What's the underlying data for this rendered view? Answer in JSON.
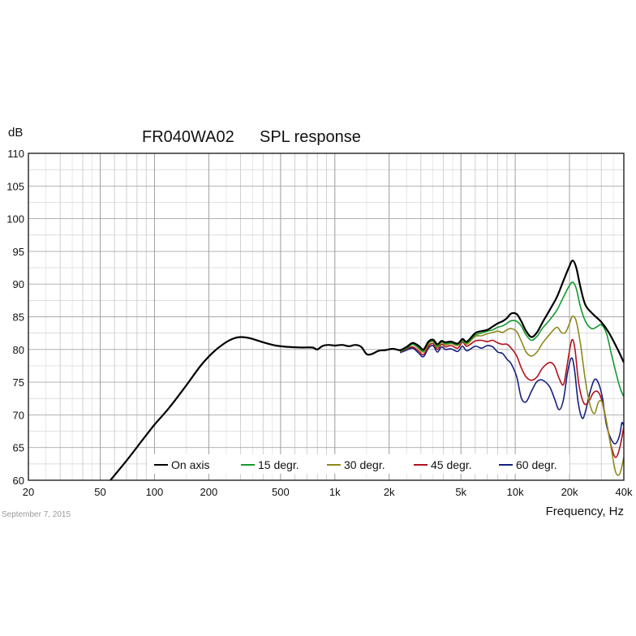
{
  "chart_data": {
    "type": "line",
    "title": "FR040WA02",
    "subtitle": "SPL response",
    "ylabel": "dB",
    "xlabel": "Frequency, Hz",
    "date_stamp": "September 7, 2015",
    "xscale": "log",
    "xlim": [
      20,
      40000
    ],
    "ylim": [
      60,
      110
    ],
    "grid": true,
    "legend_position": "bottom",
    "x_ticks": [
      {
        "value": 20,
        "label": "20"
      },
      {
        "value": 50,
        "label": "50"
      },
      {
        "value": 100,
        "label": "100"
      },
      {
        "value": 200,
        "label": "200"
      },
      {
        "value": 500,
        "label": "500"
      },
      {
        "value": 1000,
        "label": "1k"
      },
      {
        "value": 2000,
        "label": "2k"
      },
      {
        "value": 5000,
        "label": "5k"
      },
      {
        "value": 10000,
        "label": "10k"
      },
      {
        "value": 20000,
        "label": "20k"
      },
      {
        "value": 40000,
        "label": "40k"
      }
    ],
    "y_ticks": [
      {
        "value": 60,
        "label": "60"
      },
      {
        "value": 65,
        "label": "65"
      },
      {
        "value": 70,
        "label": "70"
      },
      {
        "value": 75,
        "label": "75"
      },
      {
        "value": 80,
        "label": "80"
      },
      {
        "value": 85,
        "label": "85"
      },
      {
        "value": 90,
        "label": "90"
      },
      {
        "value": 95,
        "label": "95"
      },
      {
        "value": 100,
        "label": "100"
      },
      {
        "value": 105,
        "label": "105"
      },
      {
        "value": 110,
        "label": "110"
      }
    ],
    "series": [
      {
        "name": "On axis",
        "color": "#000000",
        "points": [
          [
            57,
            60
          ],
          [
            70,
            63
          ],
          [
            85,
            66
          ],
          [
            100,
            68.5
          ],
          [
            120,
            71
          ],
          [
            150,
            74.5
          ],
          [
            180,
            77.5
          ],
          [
            210,
            79.5
          ],
          [
            240,
            80.8
          ],
          [
            270,
            81.6
          ],
          [
            300,
            81.9
          ],
          [
            340,
            81.7
          ],
          [
            400,
            81.1
          ],
          [
            470,
            80.6
          ],
          [
            550,
            80.4
          ],
          [
            650,
            80.3
          ],
          [
            750,
            80.3
          ],
          [
            800,
            80.0
          ],
          [
            850,
            80.5
          ],
          [
            920,
            80.7
          ],
          [
            1000,
            80.6
          ],
          [
            1100,
            80.7
          ],
          [
            1200,
            80.5
          ],
          [
            1300,
            80.7
          ],
          [
            1400,
            80.4
          ],
          [
            1500,
            79.3
          ],
          [
            1600,
            79.3
          ],
          [
            1750,
            79.8
          ],
          [
            1900,
            79.9
          ],
          [
            2100,
            80.1
          ],
          [
            2300,
            79.9
          ],
          [
            2500,
            80.4
          ],
          [
            2700,
            81.0
          ],
          [
            2900,
            80.6
          ],
          [
            3100,
            80.0
          ],
          [
            3300,
            81.2
          ],
          [
            3500,
            81.5
          ],
          [
            3700,
            80.8
          ],
          [
            3900,
            81.3
          ],
          [
            4100,
            81.1
          ],
          [
            4400,
            81.2
          ],
          [
            4800,
            80.9
          ],
          [
            5100,
            81.6
          ],
          [
            5400,
            81.2
          ],
          [
            6000,
            82.5
          ],
          [
            6500,
            82.8
          ],
          [
            7000,
            83.0
          ],
          [
            7500,
            83.5
          ],
          [
            8000,
            84.0
          ],
          [
            8500,
            84.3
          ],
          [
            9000,
            84.8
          ],
          [
            9500,
            85.5
          ],
          [
            10200,
            85.4
          ],
          [
            10800,
            84.3
          ],
          [
            11500,
            82.8
          ],
          [
            12300,
            81.9
          ],
          [
            13200,
            82.6
          ],
          [
            14200,
            84.2
          ],
          [
            15500,
            86.0
          ],
          [
            17000,
            88.0
          ],
          [
            18500,
            90.5
          ],
          [
            19800,
            92.5
          ],
          [
            20800,
            93.6
          ],
          [
            21800,
            92.5
          ],
          [
            23000,
            89.5
          ],
          [
            24500,
            86.8
          ],
          [
            27000,
            85.4
          ],
          [
            30000,
            84.2
          ],
          [
            33000,
            82.6
          ],
          [
            37000,
            80.0
          ],
          [
            40000,
            78.0
          ]
        ]
      },
      {
        "name": "15 degr.",
        "color": "#139a2c",
        "points": [
          [
            2300,
            79.7
          ],
          [
            2500,
            80.2
          ],
          [
            2700,
            80.8
          ],
          [
            2900,
            80.3
          ],
          [
            3100,
            79.8
          ],
          [
            3300,
            81.0
          ],
          [
            3500,
            81.3
          ],
          [
            3700,
            80.5
          ],
          [
            3900,
            81.2
          ],
          [
            4100,
            80.9
          ],
          [
            4400,
            81.0
          ],
          [
            4800,
            80.8
          ],
          [
            5100,
            81.4
          ],
          [
            5400,
            81.0
          ],
          [
            6000,
            82.2
          ],
          [
            6500,
            82.5
          ],
          [
            7000,
            82.8
          ],
          [
            7500,
            83.0
          ],
          [
            8000,
            83.4
          ],
          [
            8500,
            83.6
          ],
          [
            9000,
            84.0
          ],
          [
            9500,
            84.4
          ],
          [
            10200,
            84.3
          ],
          [
            10800,
            83.6
          ],
          [
            11500,
            82.2
          ],
          [
            12300,
            81.4
          ],
          [
            13200,
            82.0
          ],
          [
            14200,
            83.3
          ],
          [
            15500,
            84.5
          ],
          [
            17000,
            86.0
          ],
          [
            18500,
            88.0
          ],
          [
            19800,
            89.6
          ],
          [
            20800,
            90.3
          ],
          [
            21800,
            89.3
          ],
          [
            23000,
            86.5
          ],
          [
            24500,
            84.3
          ],
          [
            26500,
            83.2
          ],
          [
            28500,
            83.5
          ],
          [
            30000,
            83.8
          ],
          [
            32000,
            82.5
          ],
          [
            34000,
            79.5
          ],
          [
            36500,
            76.0
          ],
          [
            38500,
            73.8
          ],
          [
            40000,
            72.8
          ]
        ]
      },
      {
        "name": "30 degr.",
        "color": "#8e8a1c",
        "points": [
          [
            2300,
            79.8
          ],
          [
            2500,
            80.3
          ],
          [
            2700,
            80.8
          ],
          [
            2900,
            80.2
          ],
          [
            3100,
            79.6
          ],
          [
            3300,
            80.8
          ],
          [
            3500,
            81.2
          ],
          [
            3700,
            80.3
          ],
          [
            3900,
            81.1
          ],
          [
            4100,
            80.7
          ],
          [
            4400,
            80.9
          ],
          [
            4800,
            80.6
          ],
          [
            5100,
            81.3
          ],
          [
            5400,
            80.8
          ],
          [
            6000,
            82.0
          ],
          [
            6500,
            82.1
          ],
          [
            7000,
            82.4
          ],
          [
            7500,
            82.6
          ],
          [
            8000,
            82.8
          ],
          [
            8500,
            82.6
          ],
          [
            9000,
            83.0
          ],
          [
            9500,
            83.2
          ],
          [
            10200,
            82.7
          ],
          [
            10800,
            81.3
          ],
          [
            11500,
            79.6
          ],
          [
            12300,
            79.0
          ],
          [
            13200,
            79.6
          ],
          [
            14200,
            81.0
          ],
          [
            15500,
            82.3
          ],
          [
            17000,
            83.4
          ],
          [
            18000,
            82.6
          ],
          [
            19000,
            82.6
          ],
          [
            20000,
            84.0
          ],
          [
            20800,
            85.1
          ],
          [
            21800,
            84.3
          ],
          [
            23000,
            80.8
          ],
          [
            24500,
            75.2
          ],
          [
            26000,
            71.5
          ],
          [
            27500,
            70.2
          ],
          [
            29000,
            72.0
          ],
          [
            30500,
            71.8
          ],
          [
            32000,
            69.0
          ],
          [
            34000,
            65.0
          ],
          [
            36000,
            61.3
          ],
          [
            38000,
            61.0
          ],
          [
            40000,
            63.5
          ]
        ]
      },
      {
        "name": "45 degr.",
        "color": "#b3111b",
        "points": [
          [
            2300,
            79.6
          ],
          [
            2500,
            80.1
          ],
          [
            2700,
            80.4
          ],
          [
            2900,
            79.8
          ],
          [
            3100,
            79.2
          ],
          [
            3300,
            80.5
          ],
          [
            3500,
            80.9
          ],
          [
            3700,
            80.0
          ],
          [
            3900,
            80.8
          ],
          [
            4100,
            80.4
          ],
          [
            4400,
            80.6
          ],
          [
            4800,
            80.2
          ],
          [
            5100,
            81.1
          ],
          [
            5400,
            80.5
          ],
          [
            6000,
            81.3
          ],
          [
            6500,
            81.4
          ],
          [
            7000,
            81.2
          ],
          [
            7500,
            81.4
          ],
          [
            8000,
            81.0
          ],
          [
            8500,
            80.8
          ],
          [
            9000,
            80.8
          ],
          [
            9500,
            80.2
          ],
          [
            10200,
            79.0
          ],
          [
            10800,
            77.2
          ],
          [
            11500,
            75.8
          ],
          [
            12300,
            75.3
          ],
          [
            13200,
            75.8
          ],
          [
            14200,
            77.2
          ],
          [
            15500,
            78.0
          ],
          [
            16500,
            77.5
          ],
          [
            17500,
            75.6
          ],
          [
            18500,
            74.6
          ],
          [
            19300,
            77.2
          ],
          [
            20200,
            80.5
          ],
          [
            20800,
            81.5
          ],
          [
            21500,
            79.8
          ],
          [
            22500,
            74.8
          ],
          [
            24000,
            71.8
          ],
          [
            25500,
            72.0
          ],
          [
            27000,
            73.3
          ],
          [
            28500,
            73.6
          ],
          [
            30000,
            72.5
          ],
          [
            32000,
            69.0
          ],
          [
            34000,
            65.3
          ],
          [
            36000,
            63.5
          ],
          [
            38000,
            65.0
          ],
          [
            40000,
            68.2
          ]
        ]
      },
      {
        "name": "60 degr.",
        "color": "#14207f",
        "points": [
          [
            2300,
            79.5
          ],
          [
            2500,
            79.9
          ],
          [
            2700,
            80.2
          ],
          [
            2900,
            79.5
          ],
          [
            3100,
            78.9
          ],
          [
            3300,
            80.2
          ],
          [
            3500,
            80.6
          ],
          [
            3700,
            79.6
          ],
          [
            3900,
            80.4
          ],
          [
            4100,
            80.0
          ],
          [
            4400,
            80.1
          ],
          [
            4800,
            79.7
          ],
          [
            5100,
            80.5
          ],
          [
            5400,
            79.8
          ],
          [
            6000,
            80.5
          ],
          [
            6500,
            80.2
          ],
          [
            7000,
            80.6
          ],
          [
            7500,
            80.4
          ],
          [
            8000,
            79.6
          ],
          [
            8500,
            79.4
          ],
          [
            9000,
            78.5
          ],
          [
            9500,
            77.8
          ],
          [
            10200,
            75.8
          ],
          [
            10800,
            72.6
          ],
          [
            11500,
            72.0
          ],
          [
            12300,
            73.6
          ],
          [
            13200,
            75.1
          ],
          [
            14200,
            75.3
          ],
          [
            15500,
            74.3
          ],
          [
            16500,
            72.5
          ],
          [
            17500,
            70.8
          ],
          [
            18500,
            72.3
          ],
          [
            19500,
            76.5
          ],
          [
            20500,
            78.7
          ],
          [
            21300,
            77.0
          ],
          [
            22300,
            72.0
          ],
          [
            23500,
            69.5
          ],
          [
            24500,
            70.5
          ],
          [
            26000,
            73.5
          ],
          [
            27500,
            75.4
          ],
          [
            29000,
            74.8
          ],
          [
            30500,
            72.5
          ],
          [
            32000,
            68.5
          ],
          [
            34000,
            66.3
          ],
          [
            36000,
            65.6
          ],
          [
            38000,
            67.0
          ],
          [
            39000,
            68.8
          ],
          [
            40000,
            68.3
          ]
        ]
      }
    ]
  }
}
